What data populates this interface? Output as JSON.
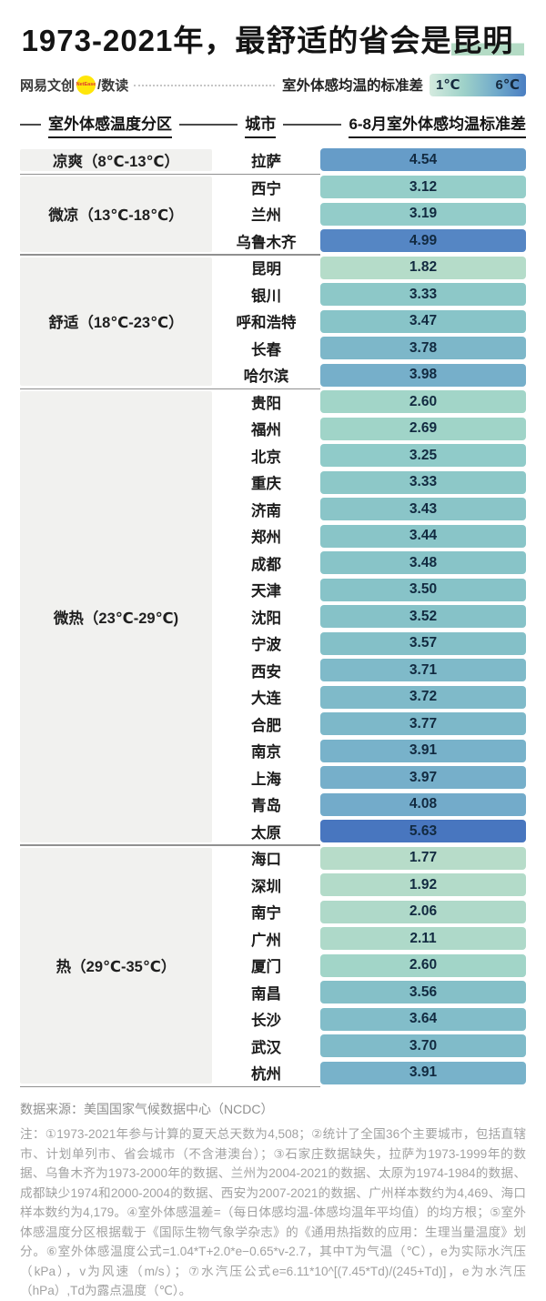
{
  "title": {
    "text_before": "1973-2021年，最舒适的省会是",
    "highlight": "昆明"
  },
  "brand": {
    "name": "网易文创",
    "badge": "NetEase",
    "divider": "/",
    "channel": "数读"
  },
  "legend": {
    "label": "室外体感均温的标准差",
    "min_label": "1℃",
    "max_label": "6℃",
    "min_color": "#d5ebdf",
    "max_color": "#4a7ec2"
  },
  "table_headers": {
    "zone": "室外体感温度分区",
    "city": "城市",
    "value": "6-8月室外体感均温标准差"
  },
  "chart_data": {
    "type": "bar",
    "title": "1973-2021年，最舒适的省会是昆明",
    "value_label": "6-8月室外体感均温标准差",
    "unit": "℃",
    "value_range": [
      1,
      6
    ],
    "note": "bars are equal length; color encodes the value from light green (1℃) to blue (6℃)",
    "color_scale": {
      "stops": [
        [
          1.0,
          "#c8e5d4"
        ],
        [
          1.8,
          "#b6dcc9"
        ],
        [
          2.1,
          "#aed9c9"
        ],
        [
          2.6,
          "#a2d5c8"
        ],
        [
          3.1,
          "#96cfc9"
        ],
        [
          3.5,
          "#87c3c8"
        ],
        [
          4.0,
          "#75aeca"
        ],
        [
          4.5,
          "#689ec8"
        ],
        [
          5.0,
          "#5585c4"
        ],
        [
          5.65,
          "#4876bf"
        ],
        [
          6.0,
          "#3f6cba"
        ]
      ]
    },
    "groups": [
      {
        "zone": "凉爽（8℃-13℃）",
        "cities": [
          {
            "name": "拉萨",
            "value": 4.54
          }
        ]
      },
      {
        "zone": "微凉（13℃-18℃）",
        "cities": [
          {
            "name": "西宁",
            "value": 3.12
          },
          {
            "name": "兰州",
            "value": 3.19
          },
          {
            "name": "乌鲁木齐",
            "value": 4.99
          }
        ]
      },
      {
        "zone": "舒适（18℃-23℃）",
        "cities": [
          {
            "name": "昆明",
            "value": 1.82
          },
          {
            "name": "银川",
            "value": 3.33
          },
          {
            "name": "呼和浩特",
            "value": 3.47
          },
          {
            "name": "长春",
            "value": 3.78
          },
          {
            "name": "哈尔滨",
            "value": 3.98
          }
        ]
      },
      {
        "zone": "微热（23℃-29℃)",
        "cities": [
          {
            "name": "贵阳",
            "value": 2.6
          },
          {
            "name": "福州",
            "value": 2.69
          },
          {
            "name": "北京",
            "value": 3.25
          },
          {
            "name": "重庆",
            "value": 3.33
          },
          {
            "name": "济南",
            "value": 3.43
          },
          {
            "name": "郑州",
            "value": 3.44
          },
          {
            "name": "成都",
            "value": 3.48
          },
          {
            "name": "天津",
            "value": 3.5
          },
          {
            "name": "沈阳",
            "value": 3.52
          },
          {
            "name": "宁波",
            "value": 3.57
          },
          {
            "name": "西安",
            "value": 3.71
          },
          {
            "name": "大连",
            "value": 3.72
          },
          {
            "name": "合肥",
            "value": 3.77
          },
          {
            "name": "南京",
            "value": 3.91
          },
          {
            "name": "上海",
            "value": 3.97
          },
          {
            "name": "青岛",
            "value": 4.08
          },
          {
            "name": "太原",
            "value": 5.63
          }
        ]
      },
      {
        "zone": "热（29℃-35℃）",
        "cities": [
          {
            "name": "海口",
            "value": 1.77
          },
          {
            "name": "深圳",
            "value": 1.92
          },
          {
            "name": "南宁",
            "value": 2.06
          },
          {
            "name": "广州",
            "value": 2.11
          },
          {
            "name": "厦门",
            "value": 2.6
          },
          {
            "name": "南昌",
            "value": 3.56
          },
          {
            "name": "长沙",
            "value": 3.64
          },
          {
            "name": "武汉",
            "value": 3.7
          },
          {
            "name": "杭州",
            "value": 3.91
          }
        ]
      }
    ]
  },
  "footer": {
    "source": "数据来源：美国国家气候数据中心（NCDC）",
    "note": "注：①1973-2021年参与计算的夏天总天数为4,508；②统计了全国36个主要城市，包括直辖市、计划单列市、省会城市（不含港澳台）；③石家庄数据缺失，拉萨为1973-1999年的数据、乌鲁木齐为1973-2000年的数据、兰州为2004-2021的数据、太原为1974-1984的数据、成都缺少1974和2000-2004的数据、西安为2007-2021的数据、广州样本数约为4,469、海口样本数约为4,179。④室外体感温差=（每日体感均温-体感均温年平均值）的均方根；⑤室外体感温度分区根据载于《国际生物气象学杂志》的《通用热指数的应用：生理当量温度》划分。⑥室外体感温度公式=1.04*T+2.0*e−0.65*v-2.7，其中T为气温（℃），e为实际水汽压（kPa），v为风速（m/s）；⑦水汽压公式e=6.11*10^[(7.45*Td)/(245+Td)]，e为水汽压（hPa）,Td为露点温度（℃）。"
  }
}
